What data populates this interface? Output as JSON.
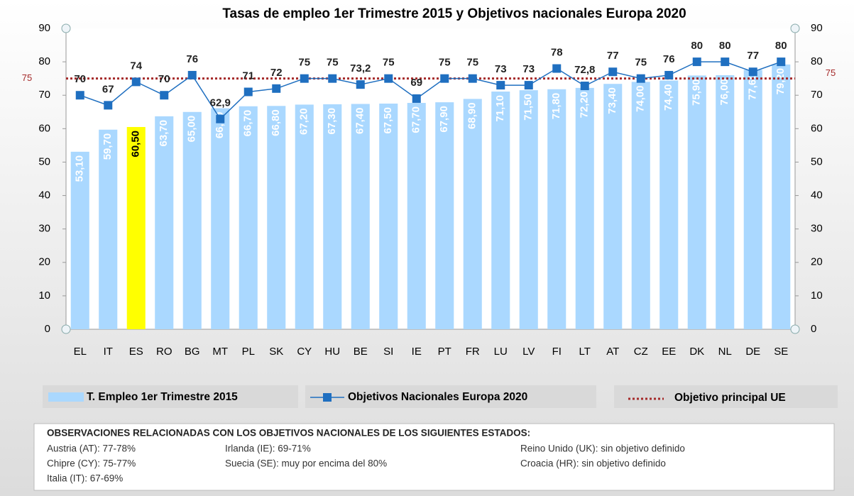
{
  "chart_data": {
    "type": "bar",
    "title": "Tasas de empleo 1er Trimestre 2015 y Objetivos nacionales Europa 2020",
    "categories": [
      "EL",
      "IT",
      "ES",
      "RO",
      "BG",
      "MT",
      "PL",
      "SK",
      "CY",
      "HU",
      "BE",
      "SI",
      "IE",
      "PT",
      "FR",
      "LU",
      "LV",
      "FI",
      "LT",
      "AT",
      "CZ",
      "EE",
      "DK",
      "NL",
      "DE",
      "SE"
    ],
    "series": [
      {
        "name": "T. Empleo 1er  Trimestre 2015",
        "type": "bar",
        "color": "#aad8ff",
        "colors": [
          "#aad8ff",
          "#aad8ff",
          "#ffff00",
          "#aad8ff",
          "#aad8ff",
          "#aad8ff",
          "#aad8ff",
          "#aad8ff",
          "#aad8ff",
          "#aad8ff",
          "#aad8ff",
          "#aad8ff",
          "#aad8ff",
          "#aad8ff",
          "#aad8ff",
          "#aad8ff",
          "#aad8ff",
          "#aad8ff",
          "#aad8ff",
          "#aad8ff",
          "#aad8ff",
          "#aad8ff",
          "#aad8ff",
          "#aad8ff",
          "#aad8ff",
          "#aad8ff"
        ],
        "values": [
          53.1,
          59.7,
          60.5,
          63.7,
          65.0,
          66.1,
          66.7,
          66.8,
          67.2,
          67.3,
          67.4,
          67.5,
          67.7,
          67.9,
          68.9,
          71.1,
          71.5,
          71.8,
          72.2,
          73.4,
          74.0,
          74.4,
          75.9,
          76.0,
          77.6,
          79.2
        ],
        "value_labels": [
          "53,10",
          "59,70",
          "60,50",
          "63,70",
          "65,00",
          "66,10",
          "66,70",
          "66,80",
          "67,20",
          "67,30",
          "67,40",
          "67,50",
          "67,70",
          "67,90",
          "68,90",
          "71,10",
          "71,50",
          "71,80",
          "72,20",
          "73,40",
          "74,00",
          "74,40",
          "75,90",
          "76,00",
          "77,60",
          "79,20"
        ]
      },
      {
        "name": "Objetivos Nacionales Europa 2020",
        "type": "line",
        "color": "#1f6fc0",
        "values": [
          70,
          67,
          74,
          70,
          76,
          62.9,
          71,
          72,
          75,
          75,
          73.2,
          75,
          69,
          75,
          75,
          73,
          73,
          78,
          72.8,
          77,
          75,
          76,
          80,
          80,
          77,
          80
        ],
        "value_labels": [
          "70",
          "67",
          "74",
          "70",
          "76",
          "62,9",
          "71",
          "72",
          "75",
          "75",
          "73,2",
          "75",
          "69",
          "75",
          "75",
          "73",
          "73",
          "78",
          "72,8",
          "77",
          "75",
          "76",
          "80",
          "80",
          "77",
          "80"
        ]
      }
    ],
    "reference_line": {
      "name": "Objetivo  principal UE",
      "value": 75,
      "color": "#a52a2a"
    },
    "ylim": [
      0,
      90
    ],
    "yticks": [
      0,
      10,
      20,
      30,
      40,
      50,
      60,
      70,
      80,
      90
    ],
    "y2lim": [
      0,
      90
    ],
    "y2ticks": [
      0,
      10,
      20,
      30,
      40,
      50,
      60,
      70,
      80,
      90
    ],
    "grid": false
  },
  "notes": {
    "heading": "OBSERVACIONES  RELACIONADAS  CON LOS OBJETIVOS  NACIONALES  DE LOS SIGUIENTES  ESTADOS:",
    "columns": [
      [
        "Austria (AT): 77-78%",
        "Chipre (CY): 75-77%",
        "Italia (IT): 67-69%"
      ],
      [
        "Irlanda (IE): 69-71%",
        "Suecia (SE):  muy  por encima del 80%"
      ],
      [
        "Reino Unido (UK): sin objetivo definido",
        "Croacia (HR): sin objetivo definido"
      ]
    ]
  }
}
